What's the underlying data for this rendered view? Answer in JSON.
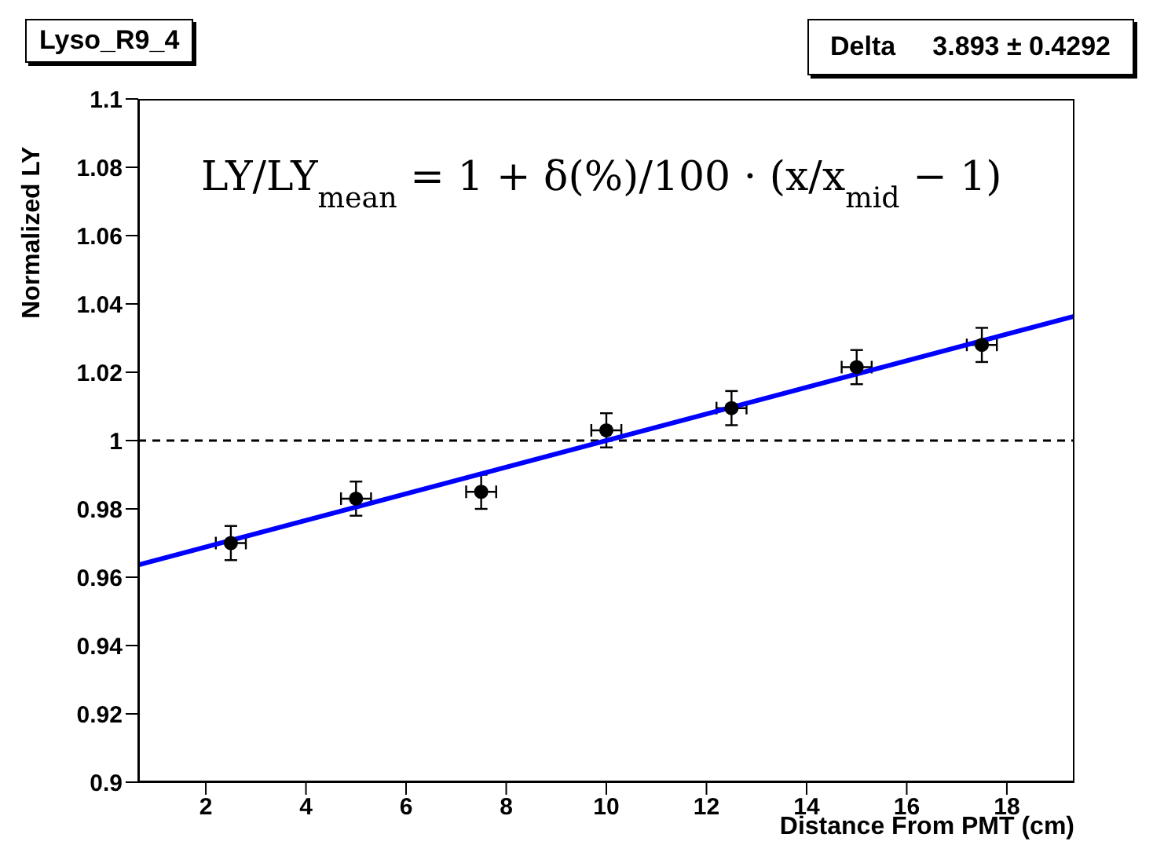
{
  "chart_data": {
    "type": "scatter",
    "title": "Lyso_R9_4",
    "xlabel": "Distance From PMT (cm)",
    "ylabel": "Normalized LY",
    "annotations": [
      "Delta     3.893 ± 0.4292",
      "LY/LY$_{mean}$ = 1 + δ(%)/100 · (x/x$_{mid}$ − 1)"
    ],
    "series": [
      {
        "color": "#000000",
        "x": [
          2.5,
          5,
          7.5,
          10,
          12.5,
          15,
          17.5
        ],
        "values": [
          0.97,
          0.983,
          0.985,
          1.003,
          1.0095,
          1.0215,
          1.028
        ],
        "errors": [
          0.005,
          0.005,
          0.005,
          0.005,
          0.005,
          0.005,
          0.005
        ],
        "xerrors": [
          0.3,
          0.3,
          0.3,
          0.3,
          0.3,
          0.3,
          0.3
        ],
        "marker": "circle"
      },
      {
        "type": "line",
        "color": "#0000ff",
        "x": [
          0.65,
          19.35
        ],
        "values": [
          0.9636,
          1.0364
        ],
        "marker": "none",
        "line_style": "solid"
      }
    ],
    "ref_lines": [
      {
        "axis": "y",
        "value": 1,
        "color": "#000000",
        "line_style": "dashed"
      }
    ],
    "xlim": [
      0.65,
      19.35
    ],
    "xticks": [
      2,
      4,
      6,
      8,
      10,
      12,
      14,
      16,
      18
    ],
    "ylim": [
      0.9,
      1.1
    ],
    "yticks": [
      0.9,
      0.92,
      0.94,
      0.96,
      0.98,
      1,
      1.02,
      1.04,
      1.06,
      1.08,
      1.1
    ],
    "grid": false,
    "legend": false
  }
}
